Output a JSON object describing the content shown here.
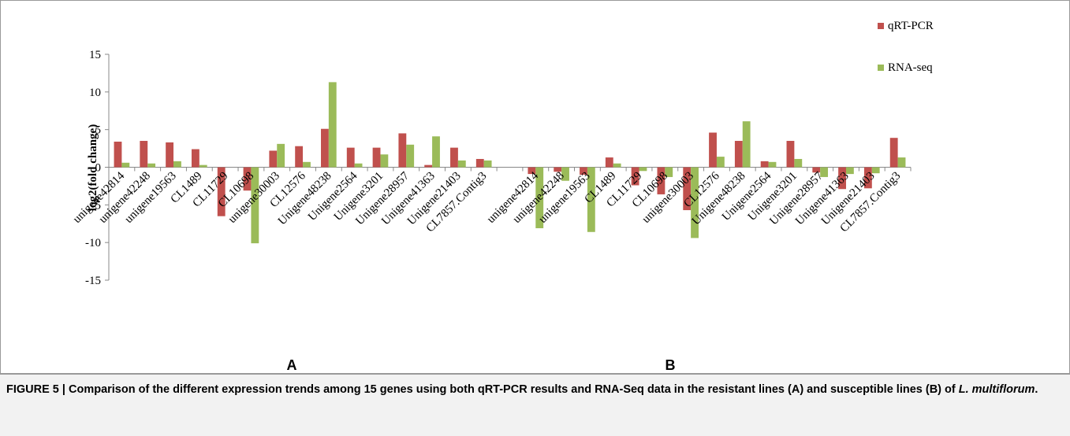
{
  "chart_data": {
    "type": "bar",
    "categories": [
      "unigene42814",
      "unigene42248",
      "unigene19563",
      "CL1489",
      "CL11729",
      "CL10698",
      "unigene30003",
      "CL12576",
      "Unigene48238",
      "Unigene2564",
      "Unigene3201",
      "Unigene28957",
      "Unigene41363",
      "Unigene21403",
      "CL7857.Contig3",
      null,
      "unigene42814",
      "unigene42248",
      "unigene19563",
      "CL1489",
      "CL11729",
      "CL10698",
      "unigene30003",
      "CL12576",
      "Unigene48238",
      "Unigene2564",
      "Unigene3201",
      "Unigene28957",
      "Unigene41363",
      "Unigene21403",
      "CL7857.Contig3"
    ],
    "series": [
      {
        "name": "qRT-PCR",
        "color": "#c0504d",
        "values": [
          3.4,
          3.5,
          3.3,
          2.4,
          -6.5,
          -3.1,
          2.2,
          2.8,
          5.1,
          2.6,
          2.6,
          4.5,
          0.3,
          2.6,
          1.1,
          null,
          -0.9,
          -0.6,
          -1.0,
          1.3,
          -2.4,
          -3.6,
          -5.7,
          4.6,
          3.5,
          0.8,
          3.5,
          -0.7,
          -2.9,
          -2.8,
          3.9
        ]
      },
      {
        "name": "RNA-seq",
        "color": "#9bbb59",
        "values": [
          0.6,
          0.5,
          0.8,
          0.3,
          0,
          -10.1,
          3.1,
          0.7,
          11.3,
          0.5,
          1.7,
          3.0,
          4.1,
          0.9,
          0.9,
          null,
          -8.1,
          -1.8,
          -8.6,
          0.5,
          -0.5,
          -1.3,
          -9.4,
          1.4,
          6.1,
          0.7,
          1.1,
          -1.3,
          -0.9,
          -0.8,
          1.3
        ]
      }
    ],
    "ylabel": "log2(fold change)",
    "ylim": [
      -15,
      15
    ],
    "yticks": [
      -15,
      -10,
      -5,
      0,
      5,
      10,
      15
    ],
    "annotations": [
      "A",
      "B"
    ],
    "caption": [
      "FIGURE 5 | Comparison of the different expression trends among 15 genes using both qRT-PCR results and RNA-Seq data in the resistant lines (A) and susceptible lines (B) of ",
      "L. multiflorum",
      "."
    ]
  }
}
